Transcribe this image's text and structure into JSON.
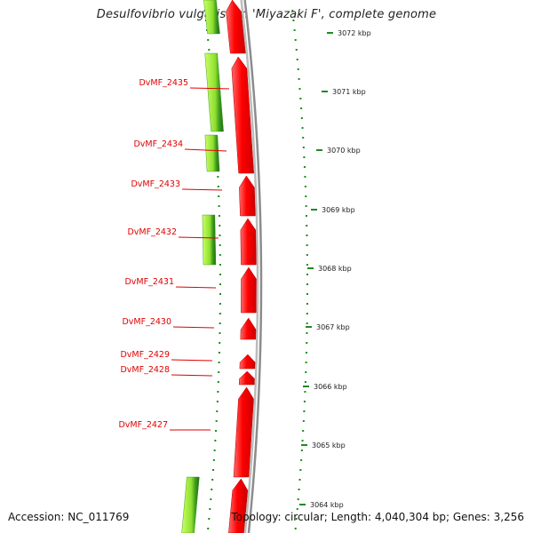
{
  "title": "Desulfovibrio vulgaris str. 'Miyazaki F', complete genome",
  "footer": {
    "accession": "Accession: NC_011769",
    "summary": "Topology: circular; Length: 4,040,304 bp; Genes: 3,256"
  },
  "colors": {
    "forward_cds": "#ff0000",
    "reverse_cds_light": "#a6f03c",
    "reverse_cds_dark": "#1e7a14",
    "backbone": "#8c8c8c",
    "tick": "#1e8c1e",
    "gene_label": "#e00000"
  },
  "scale_ticks": [
    {
      "label": "3072 kbp"
    },
    {
      "label": "3071 kbp"
    },
    {
      "label": "3070 kbp"
    },
    {
      "label": "3069 kbp"
    },
    {
      "label": "3068 kbp"
    },
    {
      "label": "3067 kbp"
    },
    {
      "label": "3066 kbp"
    },
    {
      "label": "3065 kbp"
    },
    {
      "label": "3064 kbp"
    }
  ],
  "gene_labels": [
    {
      "label": "DvMF_2435"
    },
    {
      "label": "DvMF_2434"
    },
    {
      "label": "DvMF_2433"
    },
    {
      "label": "DvMF_2432"
    },
    {
      "label": "DvMF_2431"
    },
    {
      "label": "DvMF_2430"
    },
    {
      "label": "DvMF_2429"
    },
    {
      "label": "DvMF_2428"
    },
    {
      "label": "DvMF_2427"
    }
  ]
}
